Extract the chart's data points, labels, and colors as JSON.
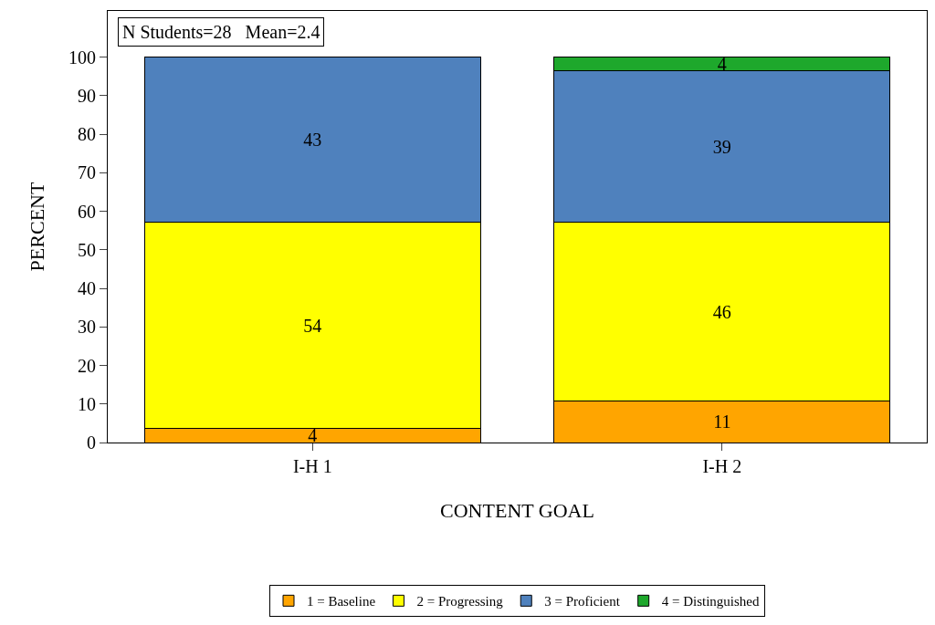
{
  "chart_data": {
    "type": "bar",
    "stacked": true,
    "xlabel": "CONTENT GOAL",
    "ylabel": "PERCENT",
    "categories": [
      "I-H 1",
      "I-H 2"
    ],
    "series": [
      {
        "name": "1 = Baseline",
        "color": "#ffa500",
        "values": [
          3.6,
          10.7
        ],
        "value_labels": [
          "4",
          "11"
        ]
      },
      {
        "name": "2 = Progressing",
        "color": "#ffff00",
        "values": [
          53.6,
          46.4
        ],
        "value_labels": [
          "54",
          "46"
        ]
      },
      {
        "name": "3 = Proficient",
        "color": "#4f81bd",
        "values": [
          42.9,
          39.3
        ],
        "value_labels": [
          "43",
          "39"
        ]
      },
      {
        "name": "4 = Distinguished",
        "color": "#1ea82c",
        "values": [
          null,
          3.6
        ],
        "value_labels": [
          null,
          "4"
        ]
      }
    ],
    "ylim": [
      0,
      112
    ],
    "yticks": [
      0,
      10,
      20,
      30,
      40,
      50,
      60,
      70,
      80,
      90,
      100
    ],
    "grid": false,
    "legend": "bottom",
    "annotations": [
      "N Students=28   Mean=2.4"
    ]
  }
}
